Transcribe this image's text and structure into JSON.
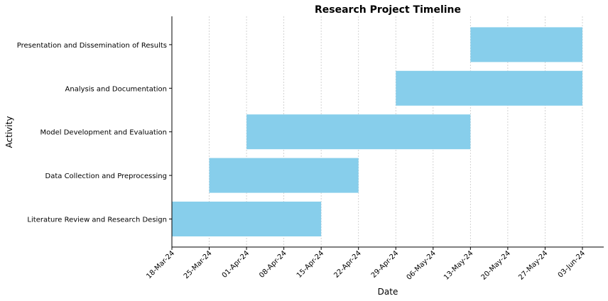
{
  "chart_data": {
    "type": "gantt",
    "title": "Research Project Timeline",
    "xlabel": "Date",
    "ylabel": "Activity",
    "xlim": [
      "2024-03-18",
      "2024-06-07"
    ],
    "x_ticks": [
      {
        "date": "2024-03-18",
        "label": "18-Mar-24"
      },
      {
        "date": "2024-03-25",
        "label": "25-Mar-24"
      },
      {
        "date": "2024-04-01",
        "label": "01-Apr-24"
      },
      {
        "date": "2024-04-08",
        "label": "08-Apr-24"
      },
      {
        "date": "2024-04-15",
        "label": "15-Apr-24"
      },
      {
        "date": "2024-04-22",
        "label": "22-Apr-24"
      },
      {
        "date": "2024-04-29",
        "label": "29-Apr-24"
      },
      {
        "date": "2024-05-06",
        "label": "06-May-24"
      },
      {
        "date": "2024-05-13",
        "label": "13-May-24"
      },
      {
        "date": "2024-05-20",
        "label": "20-May-24"
      },
      {
        "date": "2024-05-27",
        "label": "27-May-24"
      },
      {
        "date": "2024-06-03",
        "label": "03-Jun-24"
      }
    ],
    "tasks": [
      {
        "name": "Literature Review and Research Design",
        "start": "2024-03-18",
        "end": "2024-04-15"
      },
      {
        "name": "Data Collection and Preprocessing",
        "start": "2024-03-25",
        "end": "2024-04-22"
      },
      {
        "name": "Model Development and Evaluation",
        "start": "2024-04-01",
        "end": "2024-05-13"
      },
      {
        "name": "Analysis and Documentation",
        "start": "2024-04-29",
        "end": "2024-06-03"
      },
      {
        "name": "Presentation and Dissemination of Results",
        "start": "2024-05-13",
        "end": "2024-06-03"
      }
    ],
    "bar_color": "#87ceeb",
    "grid": "vertical dashed"
  }
}
